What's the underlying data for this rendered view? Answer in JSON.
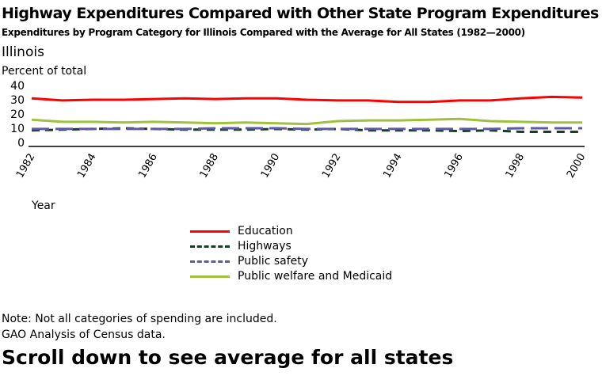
{
  "header": {
    "title": "Highway Expenditures Compared with Other State Program Expenditures",
    "subtitle": "Expenditures by Program Category for Illinois Compared with the Average for All States (1982—2000)",
    "state": "Illinois"
  },
  "footer": {
    "note": "Note:  Not all categories of spending are included.",
    "source": "GAO Analysis of Census data.",
    "scroll_hint": "Scroll down to see average for all states"
  },
  "chart_data": {
    "type": "line",
    "ylabel": "Percent of total",
    "xlabel": "Year",
    "ylim": [
      0,
      40
    ],
    "yticks": [
      "0",
      "10",
      "20",
      "30",
      "40"
    ],
    "xlim": [
      1982,
      2000
    ],
    "xticks": [
      "1982",
      "1984",
      "1986",
      "1988",
      "1990",
      "1992",
      "1994",
      "1996",
      "1998",
      "2000"
    ],
    "grid": false,
    "legend_placement": "bottom",
    "x": [
      1982,
      1983,
      1984,
      1985,
      1986,
      1987,
      1988,
      1989,
      1990,
      1991,
      1992,
      1993,
      1994,
      1995,
      1996,
      1997,
      1998,
      1999,
      2000
    ],
    "series": [
      {
        "name": "Education",
        "color": "#ff0000",
        "style": "solid",
        "values": [
          31,
          29.5,
          30,
          30,
          30.5,
          31,
          30.5,
          31,
          31,
          30,
          29.5,
          29.5,
          28.5,
          28.5,
          29.5,
          29.5,
          31,
          32,
          31.5
        ]
      },
      {
        "name": "Highways",
        "color": "#1a3a2a",
        "style": "dashed",
        "values": [
          8.5,
          9,
          9.5,
          10,
          9.5,
          9,
          9,
          9,
          9.5,
          9,
          9.5,
          8.5,
          8.5,
          8.5,
          8,
          8.5,
          7.5,
          7.5,
          7.5
        ]
      },
      {
        "name": "Public safety",
        "color": "#5a5aa8",
        "style": "longdash",
        "values": [
          9.5,
          9.5,
          9.5,
          9.5,
          9.5,
          9.5,
          10,
          10,
          10,
          9.5,
          9.5,
          9.5,
          9.5,
          9.5,
          9.5,
          9.5,
          10,
          10,
          10
        ]
      },
      {
        "name": "Public welfare and Medicaid",
        "color": "#a0c040",
        "style": "solid",
        "values": [
          16,
          14.5,
          14.5,
          14,
          14.5,
          14,
          13.5,
          14,
          13.5,
          13,
          15,
          15.5,
          15.5,
          16,
          16.5,
          15,
          14.5,
          14,
          14
        ]
      }
    ]
  }
}
